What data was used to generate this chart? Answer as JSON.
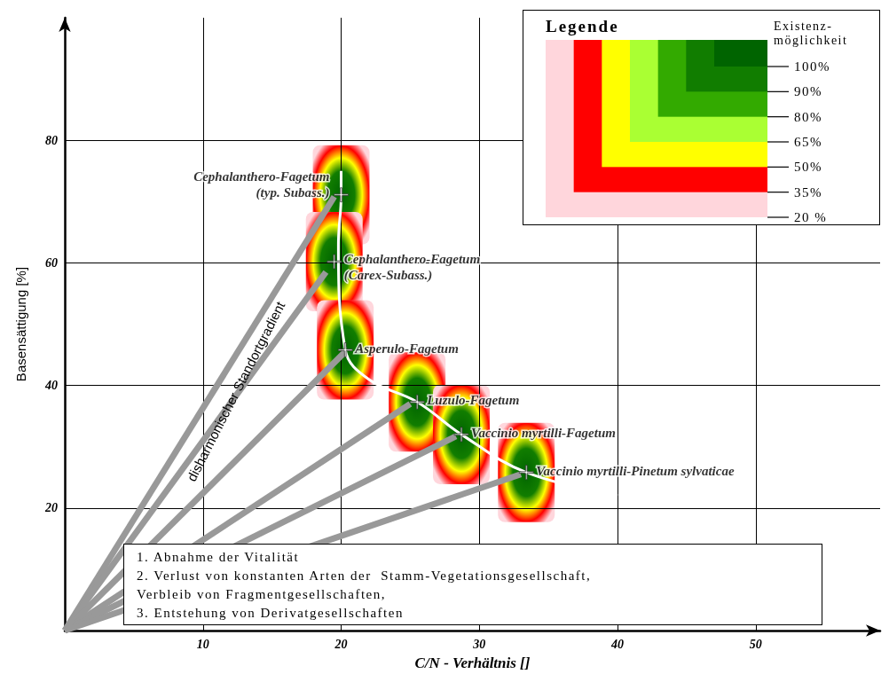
{
  "chart_data": {
    "type": "scatter",
    "xlabel": "C/N - Verhältnis []",
    "ylabel": "Basensättigung [%]",
    "legend_title": "Legende",
    "clabel": "Existenz-\nmöglichkeit",
    "xlim": [
      0,
      59
    ],
    "ylim": [
      0,
      100
    ],
    "xticks": [
      10,
      20,
      30,
      40,
      50
    ],
    "yticks": [
      20,
      40,
      60,
      80
    ],
    "grid": true,
    "series": [
      {
        "type": "scatter",
        "marker": "cross",
        "color": "#ffffff",
        "x": [
          20.0,
          19.5,
          20.3,
          25.5,
          28.7,
          33.4
        ],
        "values": [
          71.1,
          60.2,
          45.8,
          37.3,
          32.0,
          25.8
        ]
      },
      {
        "type": "line",
        "color": "#ffffff",
        "x": [
          20.0,
          20.0,
          19.8,
          20.3,
          22.0,
          25.5,
          28.7,
          33.4,
          40.0
        ],
        "values": [
          75.0,
          71.1,
          63.0,
          45.8,
          41.0,
          37.3,
          32.0,
          25.8,
          22.0
        ]
      },
      {
        "type": "line",
        "color": "#999999",
        "x": [
          0,
          19.5
        ],
        "values": [
          0,
          70.8
        ]
      },
      {
        "type": "line",
        "color": "#999999",
        "x": [
          0,
          18.9
        ],
        "values": [
          0,
          58.5
        ]
      },
      {
        "type": "line",
        "color": "#999999",
        "x": [
          0,
          20.3
        ],
        "values": [
          0,
          45.5
        ]
      },
      {
        "type": "line",
        "color": "#999999",
        "x": [
          0,
          25.0
        ],
        "values": [
          0,
          37.0
        ]
      },
      {
        "type": "line",
        "color": "#999999",
        "x": [
          0,
          28.3
        ],
        "values": [
          0,
          31.7
        ]
      },
      {
        "type": "line",
        "color": "#999999",
        "x": [
          0,
          33.0
        ],
        "values": [
          0,
          25.5
        ]
      }
    ],
    "annotations": [
      "disharmonischer Standortgradient",
      "1. Abnahme der Vitalität\n2. Verlust von konstanten Arten der  Stamm-Vegetationsgesellschaft,\nVerbleib von Fragmentgesellschaften,\n3. Entstehung von Derivatgesellschaften",
      "100%",
      "90%",
      "80%",
      "65%",
      "50%",
      "35%",
      "20 %",
      {
        "text": "Cephalanthero-Fagetum\n(typ. Subass.)",
        "x": 20.0,
        "y": 71.1
      },
      {
        "text": "Cephalanthero-Fagetum\n(Carex-Subass.)",
        "x": 19.5,
        "y": 60.2
      },
      {
        "text": "Asperulo-Fagetum",
        "x": 20.3,
        "y": 45.8
      },
      {
        "text": "Luzulo-Fagetum",
        "x": 25.5,
        "y": 37.3
      },
      {
        "text": "Vaccinio myrtilli-Fagetum",
        "x": 28.7,
        "y": 32.0
      },
      {
        "text": "Vaccinio myrtilli-Pinetum sylvaticae",
        "x": 33.4,
        "y": 25.8
      }
    ]
  }
}
